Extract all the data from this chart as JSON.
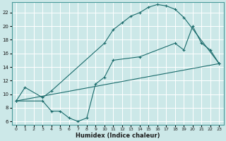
{
  "xlabel": "Humidex (Indice chaleur)",
  "bg_color": "#cce8e8",
  "grid_color": "#ffffff",
  "line_color": "#1a6b6b",
  "xlim": [
    -0.5,
    23.5
  ],
  "ylim": [
    5.5,
    23.5
  ],
  "xticks": [
    0,
    1,
    2,
    3,
    4,
    5,
    6,
    7,
    8,
    9,
    10,
    11,
    12,
    13,
    14,
    15,
    16,
    17,
    18,
    19,
    20,
    21,
    22,
    23
  ],
  "yticks": [
    6,
    8,
    10,
    12,
    14,
    16,
    18,
    20,
    22
  ],
  "line1_x": [
    0,
    1,
    3,
    4,
    10,
    11,
    12,
    13,
    14,
    15,
    16,
    17,
    18,
    19,
    23
  ],
  "line1_y": [
    9,
    11,
    9.5,
    10.5,
    17.5,
    19.5,
    20.5,
    21.5,
    22,
    22.8,
    23.2,
    23.0,
    22.5,
    21.3,
    14.5
  ],
  "line2_x": [
    0,
    23
  ],
  "line2_y": [
    9,
    14.5
  ],
  "line3_x": [
    0,
    3,
    4,
    5,
    6,
    7,
    8,
    9,
    10,
    11,
    14,
    18,
    19,
    20,
    21,
    22,
    23
  ],
  "line3_y": [
    9,
    9,
    7.5,
    7.5,
    6.5,
    6.0,
    6.5,
    11.5,
    12.5,
    15.0,
    15.5,
    17.5,
    16.5,
    20.0,
    17.5,
    16.5,
    14.5
  ]
}
